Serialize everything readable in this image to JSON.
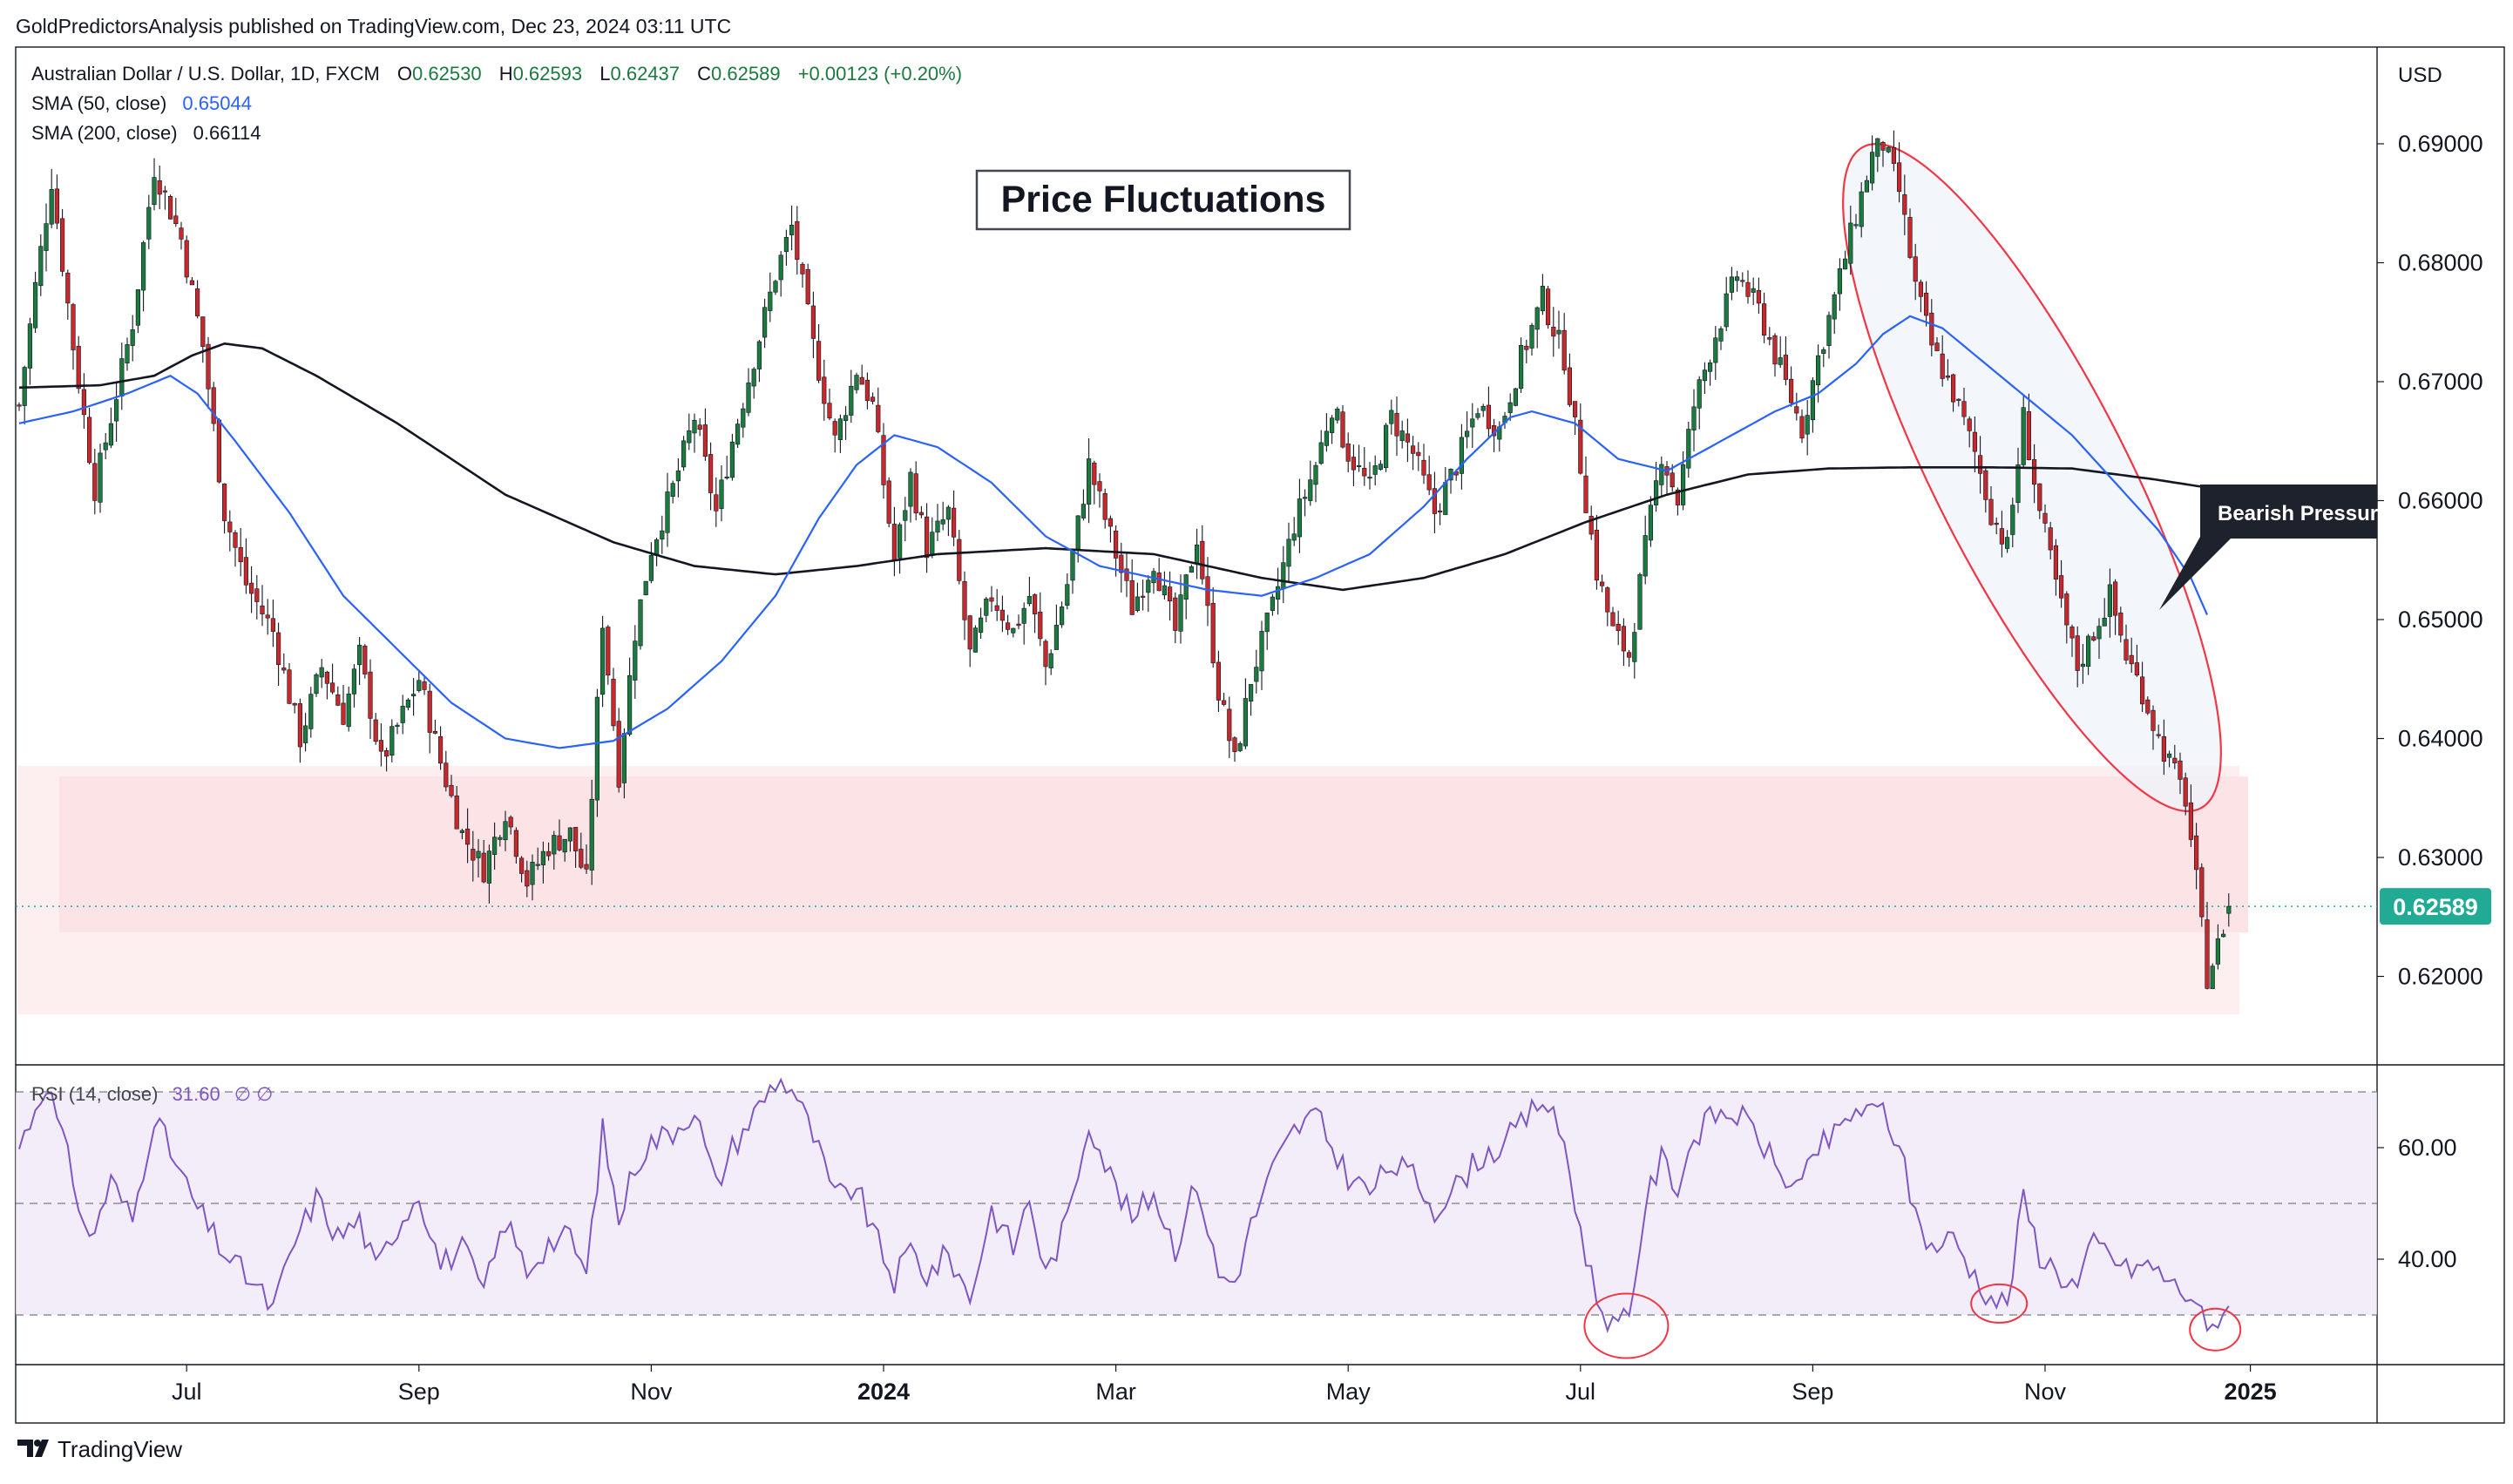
{
  "header": {
    "publisher_line": "GoldPredictorsAnalysis published on TradingView.com, Dec 23, 2024 03:11 UTC"
  },
  "legend": {
    "symbol": "Australian Dollar / U.S. Dollar, 1D, FXCM",
    "ohlc": [
      {
        "label": "O",
        "value": "0.62530"
      },
      {
        "label": "H",
        "value": "0.62593"
      },
      {
        "label": "L",
        "value": "0.62437"
      },
      {
        "label": "C",
        "value": "0.62589"
      }
    ],
    "change": "+0.00123 (+0.20%)",
    "sma50_label": "SMA (50, close)",
    "sma50_value": "0.65044",
    "sma200_label": "SMA (200, close)",
    "sma200_value": "0.66114",
    "rsi_label": "RSI (14, close)",
    "rsi_value": "31.60",
    "rsi_extra": "∅  ∅"
  },
  "annotations": {
    "title_box": "Price Fluctuations",
    "callout": "Bearish Pressure"
  },
  "footer": {
    "brand": "TradingView"
  },
  "colors": {
    "bull": "#22ab94",
    "bull_dark": "#1b7a3e",
    "bear": "#c6282b",
    "sma50": "#2962ff",
    "sma200": "#131722",
    "rsi": "#7e57c2",
    "zone": "#fde7e9",
    "ellipse": "#f23645",
    "price_label": "#22ab94"
  },
  "chart_data": [
    {
      "type": "candlestick",
      "title": "",
      "currency_label": "USD",
      "ylim": [
        0.6135,
        0.6945
      ],
      "y_ticks": [
        "0.69000",
        "0.68000",
        "0.67000",
        "0.66000",
        "0.65000",
        "0.64000",
        "0.63000",
        "0.62000"
      ],
      "last_price_label": "0.62589",
      "x_ticks": [
        {
          "label": "Jul",
          "bold": false
        },
        {
          "label": "Sep",
          "bold": false
        },
        {
          "label": "Nov",
          "bold": false
        },
        {
          "label": "2024",
          "bold": true
        },
        {
          "label": "Mar",
          "bold": false
        },
        {
          "label": "May",
          "bold": false
        },
        {
          "label": "Jul",
          "bold": false
        },
        {
          "label": "Sep",
          "bold": false
        },
        {
          "label": "Nov",
          "bold": false
        },
        {
          "label": "2025",
          "bold": true
        }
      ],
      "x_tick_index": [
        31,
        74,
        117,
        160,
        203,
        246,
        289,
        332,
        375,
        413
      ],
      "close_anchors": [
        [
          0,
          0.668
        ],
        [
          3,
          0.678
        ],
        [
          6,
          0.687
        ],
        [
          10,
          0.673
        ],
        [
          14,
          0.661
        ],
        [
          18,
          0.669
        ],
        [
          21,
          0.675
        ],
        [
          25,
          0.688
        ],
        [
          30,
          0.682
        ],
        [
          34,
          0.673
        ],
        [
          38,
          0.659
        ],
        [
          42,
          0.653
        ],
        [
          47,
          0.649
        ],
        [
          52,
          0.64
        ],
        [
          56,
          0.646
        ],
        [
          60,
          0.642
        ],
        [
          63,
          0.647
        ],
        [
          67,
          0.638
        ],
        [
          70,
          0.641
        ],
        [
          74,
          0.645
        ],
        [
          78,
          0.638
        ],
        [
          82,
          0.632
        ],
        [
          86,
          0.629
        ],
        [
          90,
          0.634
        ],
        [
          94,
          0.628
        ],
        [
          98,
          0.631
        ],
        [
          102,
          0.632
        ],
        [
          105,
          0.628
        ],
        [
          108,
          0.65
        ],
        [
          111,
          0.637
        ],
        [
          114,
          0.649
        ],
        [
          117,
          0.656
        ],
        [
          121,
          0.661
        ],
        [
          125,
          0.667
        ],
        [
          129,
          0.659
        ],
        [
          132,
          0.665
        ],
        [
          136,
          0.672
        ],
        [
          140,
          0.679
        ],
        [
          143,
          0.683
        ],
        [
          147,
          0.673
        ],
        [
          151,
          0.665
        ],
        [
          155,
          0.671
        ],
        [
          158,
          0.668
        ],
        [
          162,
          0.655
        ],
        [
          165,
          0.662
        ],
        [
          168,
          0.656
        ],
        [
          172,
          0.659
        ],
        [
          176,
          0.647
        ],
        [
          180,
          0.652
        ],
        [
          184,
          0.649
        ],
        [
          187,
          0.652
        ],
        [
          190,
          0.646
        ],
        [
          194,
          0.653
        ],
        [
          198,
          0.663
        ],
        [
          202,
          0.657
        ],
        [
          206,
          0.651
        ],
        [
          210,
          0.655
        ],
        [
          214,
          0.649
        ],
        [
          218,
          0.657
        ],
        [
          222,
          0.644
        ],
        [
          225,
          0.638
        ],
        [
          228,
          0.645
        ],
        [
          232,
          0.651
        ],
        [
          236,
          0.658
        ],
        [
          240,
          0.663
        ],
        [
          243,
          0.668
        ],
        [
          246,
          0.664
        ],
        [
          250,
          0.661
        ],
        [
          254,
          0.667
        ],
        [
          258,
          0.664
        ],
        [
          262,
          0.659
        ],
        [
          266,
          0.663
        ],
        [
          270,
          0.668
        ],
        [
          274,
          0.666
        ],
        [
          278,
          0.672
        ],
        [
          282,
          0.677
        ],
        [
          286,
          0.672
        ],
        [
          289,
          0.663
        ],
        [
          292,
          0.654
        ],
        [
          295,
          0.649
        ],
        [
          298,
          0.647
        ],
        [
          301,
          0.656
        ],
        [
          304,
          0.664
        ],
        [
          307,
          0.66
        ],
        [
          310,
          0.668
        ],
        [
          314,
          0.674
        ],
        [
          318,
          0.679
        ],
        [
          322,
          0.676
        ],
        [
          326,
          0.671
        ],
        [
          330,
          0.666
        ],
        [
          333,
          0.672
        ],
        [
          336,
          0.677
        ],
        [
          340,
          0.684
        ],
        [
          343,
          0.689
        ],
        [
          345,
          0.69
        ],
        [
          348,
          0.686
        ],
        [
          351,
          0.678
        ],
        [
          354,
          0.673
        ],
        [
          358,
          0.669
        ],
        [
          362,
          0.664
        ],
        [
          365,
          0.659
        ],
        [
          368,
          0.656
        ],
        [
          371,
          0.667
        ],
        [
          374,
          0.659
        ],
        [
          378,
          0.651
        ],
        [
          381,
          0.646
        ],
        [
          384,
          0.649
        ],
        [
          387,
          0.652
        ],
        [
          390,
          0.647
        ],
        [
          393,
          0.644
        ],
        [
          396,
          0.64
        ],
        [
          399,
          0.637
        ],
        [
          401,
          0.635
        ],
        [
          403,
          0.628
        ],
        [
          405,
          0.62
        ],
        [
          407,
          0.6225
        ],
        [
          409,
          0.6259
        ]
      ],
      "sma50_anchors": [
        [
          0,
          0.6665
        ],
        [
          10,
          0.6675
        ],
        [
          20,
          0.669
        ],
        [
          28,
          0.6705
        ],
        [
          33,
          0.669
        ],
        [
          40,
          0.665
        ],
        [
          50,
          0.659
        ],
        [
          60,
          0.652
        ],
        [
          70,
          0.6475
        ],
        [
          80,
          0.643
        ],
        [
          90,
          0.64
        ],
        [
          100,
          0.6392
        ],
        [
          110,
          0.6398
        ],
        [
          120,
          0.6425
        ],
        [
          130,
          0.6465
        ],
        [
          140,
          0.652
        ],
        [
          148,
          0.6585
        ],
        [
          155,
          0.663
        ],
        [
          162,
          0.6655
        ],
        [
          170,
          0.6645
        ],
        [
          180,
          0.6615
        ],
        [
          190,
          0.657
        ],
        [
          200,
          0.6545
        ],
        [
          210,
          0.6535
        ],
        [
          220,
          0.6525
        ],
        [
          230,
          0.652
        ],
        [
          240,
          0.6535
        ],
        [
          250,
          0.6555
        ],
        [
          260,
          0.6595
        ],
        [
          268,
          0.6635
        ],
        [
          276,
          0.667
        ],
        [
          280,
          0.6675
        ],
        [
          288,
          0.6665
        ],
        [
          296,
          0.6635
        ],
        [
          305,
          0.6625
        ],
        [
          315,
          0.665
        ],
        [
          325,
          0.6675
        ],
        [
          333,
          0.669
        ],
        [
          340,
          0.6715
        ],
        [
          345,
          0.674
        ],
        [
          350,
          0.6755
        ],
        [
          356,
          0.6745
        ],
        [
          364,
          0.6715
        ],
        [
          372,
          0.6685
        ],
        [
          380,
          0.6655
        ],
        [
          388,
          0.6615
        ],
        [
          396,
          0.6575
        ],
        [
          402,
          0.6535
        ],
        [
          405,
          0.6504
        ]
      ],
      "sma200_anchors": [
        [
          0,
          0.6695
        ],
        [
          15,
          0.6697
        ],
        [
          25,
          0.6705
        ],
        [
          32,
          0.6722
        ],
        [
          38,
          0.6732
        ],
        [
          45,
          0.6728
        ],
        [
          55,
          0.6705
        ],
        [
          70,
          0.6665
        ],
        [
          90,
          0.6605
        ],
        [
          110,
          0.6565
        ],
        [
          125,
          0.6545
        ],
        [
          140,
          0.6538
        ],
        [
          155,
          0.6545
        ],
        [
          170,
          0.6555
        ],
        [
          190,
          0.656
        ],
        [
          210,
          0.6555
        ],
        [
          230,
          0.6535
        ],
        [
          245,
          0.6525
        ],
        [
          260,
          0.6535
        ],
        [
          275,
          0.6555
        ],
        [
          290,
          0.6582
        ],
        [
          305,
          0.6605
        ],
        [
          320,
          0.6622
        ],
        [
          335,
          0.6627
        ],
        [
          350,
          0.6628
        ],
        [
          365,
          0.6628
        ],
        [
          380,
          0.6627
        ],
        [
          395,
          0.6618
        ],
        [
          405,
          0.6611
        ]
      ],
      "support_zone_inner": [
        0.6237,
        0.6368
      ],
      "support_zone_outer": [
        0.6168,
        0.6377
      ]
    },
    {
      "type": "line",
      "title": "",
      "ylim": [
        22,
        77
      ],
      "y_ticks": [
        "60.00",
        "40.00"
      ],
      "levels": [
        70,
        50,
        30
      ],
      "rsi_anchors": [
        [
          0,
          60
        ],
        [
          5,
          72
        ],
        [
          9,
          58
        ],
        [
          13,
          43
        ],
        [
          17,
          54
        ],
        [
          21,
          47
        ],
        [
          25,
          66
        ],
        [
          29,
          57
        ],
        [
          33,
          49
        ],
        [
          38,
          41
        ],
        [
          43,
          36
        ],
        [
          47,
          31
        ],
        [
          51,
          43
        ],
        [
          55,
          51
        ],
        [
          59,
          44
        ],
        [
          63,
          47
        ],
        [
          66,
          38
        ],
        [
          70,
          46
        ],
        [
          74,
          52
        ],
        [
          78,
          39
        ],
        [
          82,
          42
        ],
        [
          86,
          34
        ],
        [
          90,
          47
        ],
        [
          94,
          38
        ],
        [
          98,
          43
        ],
        [
          102,
          44
        ],
        [
          105,
          37
        ],
        [
          108,
          63
        ],
        [
          111,
          47
        ],
        [
          114,
          57
        ],
        [
          117,
          61
        ],
        [
          121,
          63
        ],
        [
          125,
          67
        ],
        [
          129,
          53
        ],
        [
          132,
          60
        ],
        [
          136,
          66
        ],
        [
          140,
          72
        ],
        [
          143,
          71
        ],
        [
          147,
          62
        ],
        [
          151,
          51
        ],
        [
          155,
          53
        ],
        [
          158,
          45
        ],
        [
          162,
          36
        ],
        [
          165,
          42
        ],
        [
          168,
          37
        ],
        [
          172,
          41
        ],
        [
          176,
          33
        ],
        [
          180,
          49
        ],
        [
          184,
          42
        ],
        [
          187,
          51
        ],
        [
          190,
          37
        ],
        [
          194,
          47
        ],
        [
          198,
          65
        ],
        [
          202,
          55
        ],
        [
          206,
          47
        ],
        [
          210,
          52
        ],
        [
          214,
          42
        ],
        [
          218,
          54
        ],
        [
          222,
          37
        ],
        [
          225,
          36
        ],
        [
          228,
          46
        ],
        [
          232,
          56
        ],
        [
          236,
          63
        ],
        [
          240,
          66
        ],
        [
          243,
          60
        ],
        [
          246,
          55
        ],
        [
          250,
          52
        ],
        [
          254,
          57
        ],
        [
          258,
          55
        ],
        [
          262,
          49
        ],
        [
          266,
          53
        ],
        [
          270,
          58
        ],
        [
          274,
          60
        ],
        [
          278,
          64
        ],
        [
          282,
          69
        ],
        [
          286,
          61
        ],
        [
          289,
          45
        ],
        [
          292,
          33
        ],
        [
          295,
          28
        ],
        [
          298,
          29
        ],
        [
          301,
          50
        ],
        [
          304,
          58
        ],
        [
          307,
          53
        ],
        [
          310,
          62
        ],
        [
          314,
          66
        ],
        [
          318,
          66
        ],
        [
          322,
          62
        ],
        [
          326,
          55
        ],
        [
          330,
          53
        ],
        [
          333,
          60
        ],
        [
          336,
          62
        ],
        [
          340,
          67
        ],
        [
          343,
          66
        ],
        [
          345,
          67
        ],
        [
          348,
          60
        ],
        [
          351,
          48
        ],
        [
          354,
          42
        ],
        [
          358,
          44
        ],
        [
          362,
          37
        ],
        [
          365,
          33
        ],
        [
          368,
          32
        ],
        [
          371,
          51
        ],
        [
          374,
          41
        ],
        [
          378,
          37
        ],
        [
          381,
          35
        ],
        [
          384,
          43
        ],
        [
          387,
          41
        ],
        [
          390,
          38
        ],
        [
          393,
          39
        ],
        [
          396,
          38
        ],
        [
          399,
          35
        ],
        [
          401,
          34
        ],
        [
          403,
          33
        ],
        [
          405,
          26
        ],
        [
          407,
          30
        ],
        [
          409,
          31.6
        ]
      ],
      "marked_lows_index": [
        297,
        366,
        406
      ]
    }
  ]
}
